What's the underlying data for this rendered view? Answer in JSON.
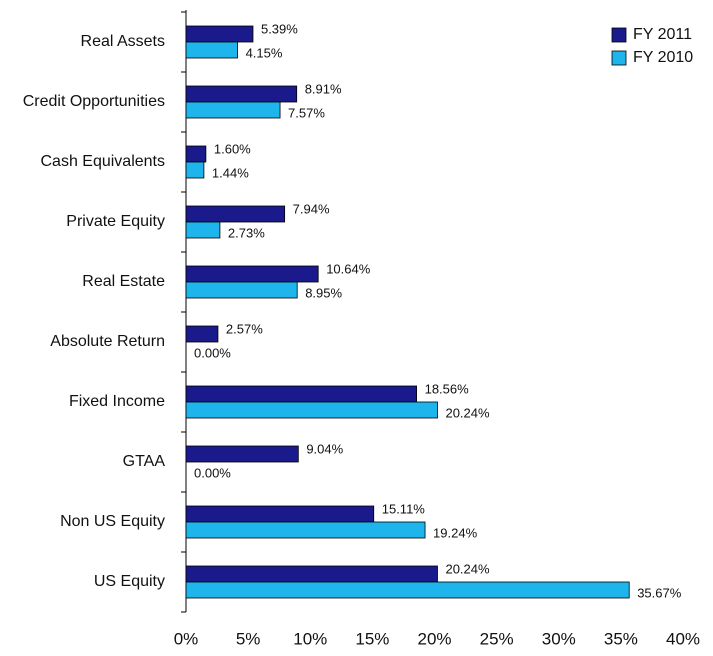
{
  "chart_data": {
    "type": "hbar",
    "categories": [
      "Real Assets",
      "Credit Opportunities",
      "Cash Equivalents",
      "Private Equity",
      "Real Estate",
      "Absolute Return",
      "Fixed Income",
      "GTAA",
      "Non US Equity",
      "US Equity"
    ],
    "series": [
      {
        "name": "FY 2011",
        "color": "#1a1a8c",
        "values": [
          5.39,
          8.91,
          1.6,
          7.94,
          10.64,
          2.57,
          18.56,
          9.04,
          15.11,
          20.24
        ],
        "value_labels": [
          "5.39%",
          "8.91%",
          "1.60%",
          "7.94%",
          "10.64%",
          "2.57%",
          "18.56%",
          "9.04%",
          "15.11%",
          "20.24%"
        ]
      },
      {
        "name": "FY 2010",
        "color": "#1eb4ec",
        "values": [
          4.15,
          7.57,
          1.44,
          2.73,
          8.95,
          0.0,
          20.24,
          0.0,
          19.24,
          35.67
        ],
        "value_labels": [
          "4.15%",
          "7.57%",
          "1.44%",
          "2.73%",
          "8.95%",
          "0.00%",
          "20.24%",
          "0.00%",
          "19.24%",
          "35.67%"
        ]
      }
    ],
    "xlim": [
      0,
      40
    ],
    "xticks": [
      {
        "value": 0,
        "label": "0%"
      },
      {
        "value": 5,
        "label": "5%"
      },
      {
        "value": 10,
        "label": "10%"
      },
      {
        "value": 15,
        "label": "15%"
      },
      {
        "value": 20,
        "label": "20%"
      },
      {
        "value": 25,
        "label": "25%"
      },
      {
        "value": 30,
        "label": "30%"
      },
      {
        "value": 35,
        "label": "35%"
      },
      {
        "value": 40,
        "label": "40%"
      }
    ],
    "legend": "top-right"
  }
}
